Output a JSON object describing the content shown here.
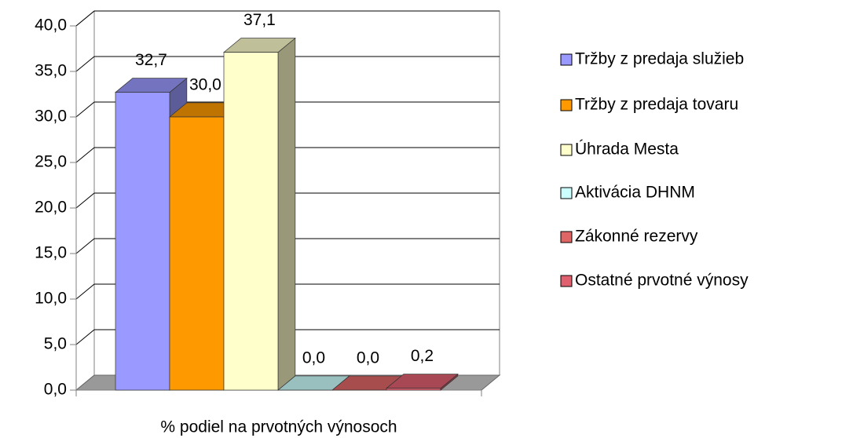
{
  "chart_data": {
    "type": "bar3d",
    "categories": [
      "% podiel na prvotných výnosoch"
    ],
    "series": [
      {
        "name": "Tržby z predaja služieb",
        "color": "#9999ff",
        "values": [
          32.7
        ],
        "value_labels": [
          "32,7"
        ]
      },
      {
        "name": "Tržby z predaja tovaru",
        "color": "#ff9900",
        "values": [
          30.0
        ],
        "value_labels": [
          "30,0"
        ]
      },
      {
        "name": "Úhrada Mesta",
        "color": "#ffffcc",
        "values": [
          37.1
        ],
        "value_labels": [
          "37,1"
        ]
      },
      {
        "name": "Aktivácia DHNM",
        "color": "#ccffff",
        "values": [
          0.0
        ],
        "value_labels": [
          "0,0"
        ]
      },
      {
        "name": "Zákonné rezervy",
        "color": "#e06666",
        "values": [
          0.0
        ],
        "value_labels": [
          "0,0"
        ]
      },
      {
        "name": "Ostatné prvotné výnosy",
        "color": "#e06070",
        "values": [
          0.2
        ],
        "value_labels": [
          "0,2"
        ]
      }
    ],
    "ylim": [
      0,
      40
    ],
    "yticks": [
      {
        "value": 0,
        "label": "0,0"
      },
      {
        "value": 5,
        "label": "5,0"
      },
      {
        "value": 10,
        "label": "10,0"
      },
      {
        "value": 15,
        "label": "15,0"
      },
      {
        "value": 20,
        "label": "20,0"
      },
      {
        "value": 25,
        "label": "25,0"
      },
      {
        "value": 30,
        "label": "30,0"
      },
      {
        "value": 35,
        "label": "35,0"
      },
      {
        "value": 40,
        "label": "40,0"
      }
    ],
    "grid": true,
    "legend": "right"
  }
}
